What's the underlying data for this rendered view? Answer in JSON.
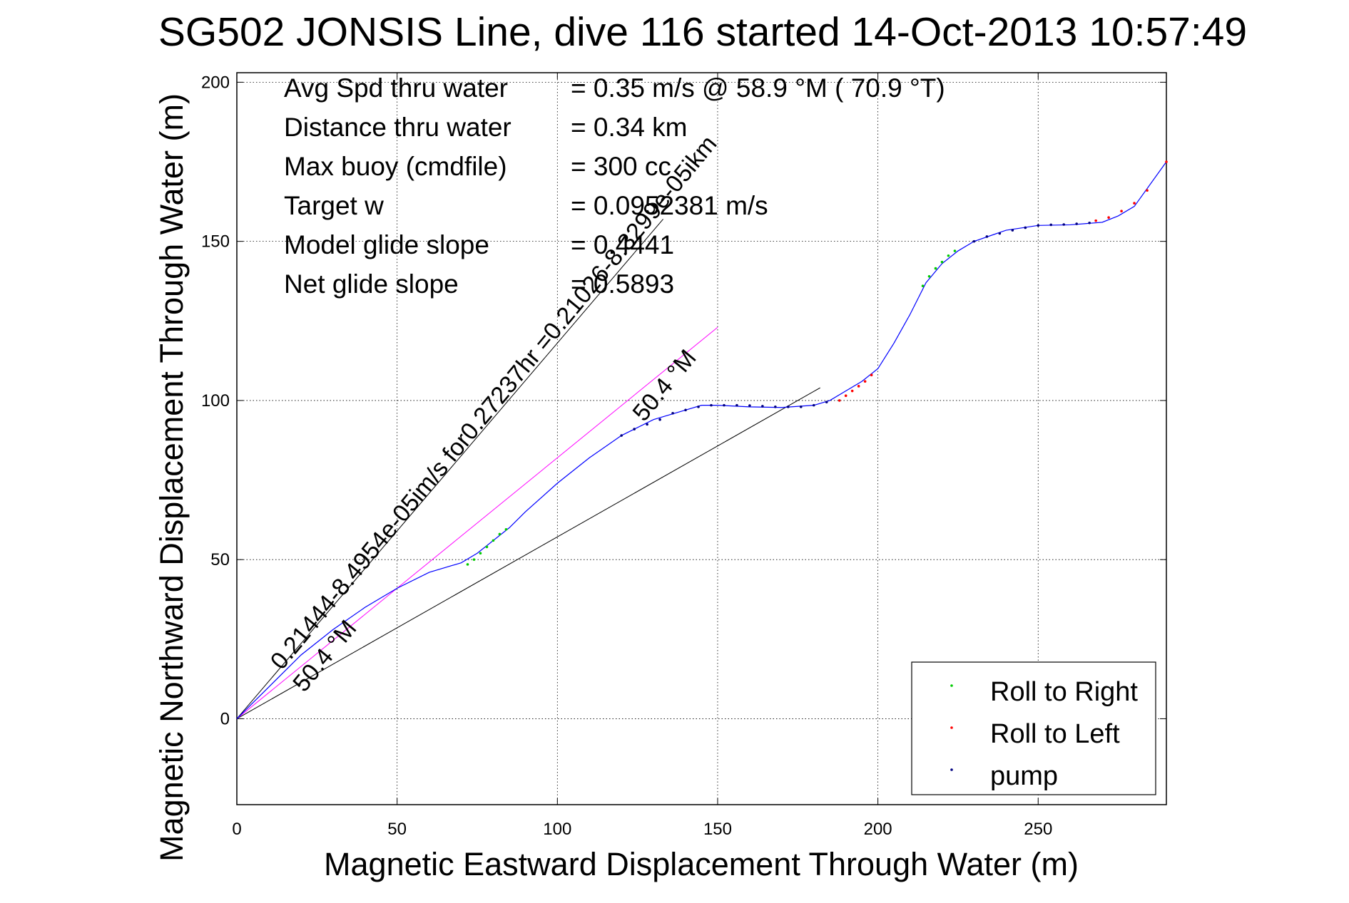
{
  "chart_data": {
    "type": "line",
    "title": "SG502 JONSIS Line, dive 116 started 14-Oct-2013 10:57:49",
    "xlabel": "Magnetic Eastward Displacement Through Water (m)",
    "ylabel": "Magnetic Northward Displacement Through Water (m)",
    "xlim": [
      0,
      290
    ],
    "ylim": [
      -27,
      203
    ],
    "xticks": [
      0,
      50,
      100,
      150,
      200,
      250
    ],
    "yticks": [
      0,
      50,
      100,
      150,
      200
    ],
    "grid": true,
    "legend_position": "bottom-right",
    "colors": {
      "track": "#0000ff",
      "roll_right": "#00cc00",
      "roll_left": "#ff0000",
      "pump": "#000080",
      "reference_lines": "#000000",
      "magenta_line": "#ff00ff"
    },
    "info_text": [
      {
        "label": "Avg Spd thru water",
        "value": "=  0.35 m/s @  58.9 °M ( 70.9 °T)"
      },
      {
        "label": "Distance thru water",
        "value": "=  0.34 km"
      },
      {
        "label": "Max buoy (cmdfile)",
        "value": "= 300 cc"
      },
      {
        "label": "Target w",
        "value": "= 0.0952381 m/s"
      },
      {
        "label": "Model glide slope",
        "value": "= 0.4441"
      },
      {
        "label": "Net glide slope",
        "value": "= 0.5893"
      }
    ],
    "annotations": [
      {
        "text": "0.21444-8.4954e-05im/s for0.27237hr =0.21026-8.3299e-05ikm",
        "x": 14,
        "y": 15,
        "angle_deg": 50.4
      },
      {
        "text": "50.4 °M",
        "x": 21,
        "y": 8,
        "angle_deg": 50.4
      },
      {
        "text": "50.4 °M",
        "x": 127,
        "y": 93,
        "angle_deg": 50.4
      }
    ],
    "reference_lines": [
      {
        "name": "upper-bound",
        "x": [
          0,
          133
        ],
        "y": [
          0,
          157
        ]
      },
      {
        "name": "lower-bound",
        "x": [
          0,
          182
        ],
        "y": [
          0,
          104
        ]
      },
      {
        "name": "mean-heading",
        "x": [
          0,
          150
        ],
        "y": [
          0,
          123
        ]
      }
    ],
    "series": [
      {
        "type": "line",
        "x": [
          0,
          10,
          20,
          30,
          40,
          50,
          60,
          70,
          75,
          80,
          85,
          90,
          100,
          110,
          120,
          130,
          140,
          145,
          150,
          160,
          170,
          180,
          185,
          190,
          195,
          200,
          205,
          210,
          215,
          220,
          225,
          230,
          240,
          250,
          260,
          270,
          275,
          280,
          290
        ],
        "y": [
          0,
          10,
          20,
          28,
          35,
          41,
          46,
          49,
          52,
          56,
          60,
          65,
          74,
          82,
          89,
          94,
          97,
          98.5,
          98.5,
          98,
          97.8,
          98.5,
          100,
          103,
          106,
          110,
          118,
          127,
          137,
          143,
          147,
          150,
          153.5,
          155,
          155.2,
          156,
          158,
          161,
          175
        ]
      },
      {
        "name": "Roll to Right",
        "type": "scatter",
        "x": [
          72,
          74,
          76,
          78,
          80,
          82,
          84,
          214,
          216,
          218,
          220,
          222,
          224
        ],
        "y": [
          48.5,
          50,
          52,
          54,
          56,
          58,
          59.5,
          136,
          139,
          141.5,
          143.5,
          145.5,
          147
        ]
      },
      {
        "name": "Roll to Left",
        "type": "scatter",
        "x": [
          188,
          190,
          192,
          194,
          196,
          198,
          268,
          272,
          276,
          280,
          284,
          290
        ],
        "y": [
          100,
          101.5,
          103,
          104.5,
          106,
          108,
          156.5,
          157.5,
          159.5,
          162,
          166,
          175
        ]
      },
      {
        "name": "pump",
        "type": "scatter",
        "x": [
          120,
          124,
          128,
          132,
          136,
          140,
          144,
          148,
          152,
          156,
          160,
          164,
          168,
          172,
          176,
          180,
          184,
          230,
          234,
          238,
          242,
          246,
          250,
          254,
          258,
          262,
          266
        ],
        "y": [
          89,
          91,
          92.5,
          94,
          96,
          97,
          98,
          98.5,
          98.5,
          98.5,
          98.4,
          98.2,
          98,
          98,
          98,
          98.5,
          99.5,
          150,
          151.5,
          152.5,
          153.5,
          154.3,
          155,
          155.2,
          155.3,
          155.5,
          155.8
        ]
      }
    ]
  }
}
